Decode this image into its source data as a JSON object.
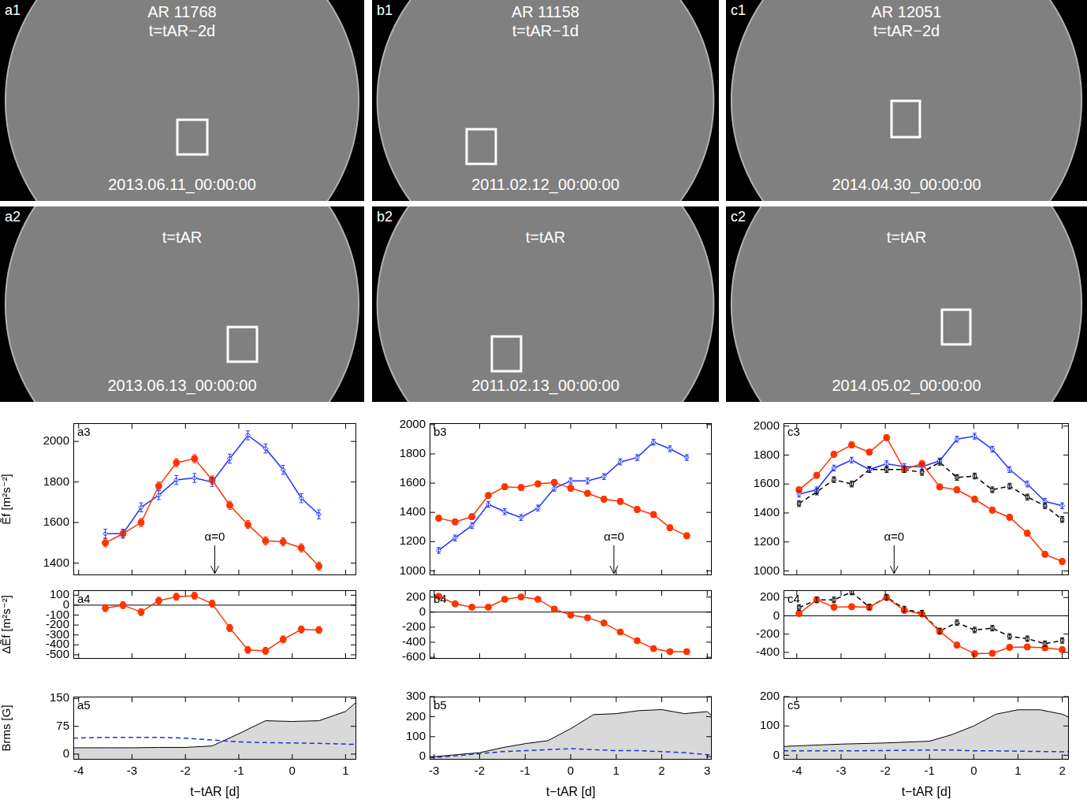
{
  "images": [
    {
      "title": "a1",
      "text": [
        "AR 11768",
        "t=tAR−2d"
      ],
      "date": "2013.06.11_00:00:00"
    },
    {
      "title": "a2",
      "text": [
        "t=tAR"
      ],
      "date": "2013.06.13_00:00:00"
    },
    {
      "title": "b1",
      "text": [
        "AR 11158",
        "t=tAR−1d"
      ],
      "date": "2011.02.12_00:00:00"
    },
    {
      "title": "b2",
      "text": [
        "t=tAR"
      ],
      "date": "2011.02.13_00:00:00"
    },
    {
      "title": "c1",
      "text": [
        "AR 12051",
        "t=tAR−2d"
      ],
      "date": "2014.04.30_00:00:00"
    },
    {
      "title": "c2",
      "text": [
        "t=tAR"
      ],
      "date": "2014.05.02_00:00:00"
    }
  ],
  "chart_data": [
    {
      "type": "line",
      "title": "a3",
      "ylabel": "Ẽf [m²s⁻²]",
      "grid": false,
      "tick_labels": "y",
      "xlim": [
        -4.1,
        1.2
      ],
      "xticks": [
        -4,
        -3,
        -2,
        -1,
        0,
        1
      ],
      "ylim": [
        1340,
        2090
      ],
      "yticks": [
        1400,
        1600,
        1800,
        2000
      ],
      "annotations": [
        {
          "x": -1.45,
          "text": "α=0"
        }
      ],
      "series": [
        {
          "color": "#ff3300",
          "marker": "circle",
          "line_style": "solid",
          "x": [
            -3.5,
            -3.17,
            -2.83,
            -2.5,
            -2.17,
            -1.83,
            -1.5,
            -1.17,
            -0.83,
            -0.5,
            -0.17,
            0.17,
            0.5
          ],
          "values": [
            1500,
            1545,
            1600,
            1780,
            1895,
            1915,
            1810,
            1685,
            1590,
            1510,
            1505,
            1475,
            1385
          ],
          "errors": [
            20,
            20,
            20,
            20,
            20,
            20,
            20,
            20,
            20,
            20,
            20,
            20,
            20
          ]
        },
        {
          "color": "#2233ff",
          "marker": "diamond",
          "line_style": "solid",
          "x": [
            -3.5,
            -3.17,
            -2.83,
            -2.5,
            -2.17,
            -1.83,
            -1.5,
            -1.17,
            -0.83,
            -0.5,
            -0.17,
            0.17,
            0.5
          ],
          "values": [
            1545,
            1545,
            1675,
            1735,
            1810,
            1820,
            1800,
            1915,
            2030,
            1965,
            1860,
            1720,
            1640
          ],
          "errors": [
            22,
            22,
            22,
            22,
            22,
            22,
            22,
            22,
            22,
            22,
            22,
            22,
            22
          ]
        }
      ]
    },
    {
      "type": "line",
      "title": "a4",
      "ylabel": "ΔẼf [m²s⁻²]",
      "grid": false,
      "tick_labels": "y",
      "xlim": [
        -4.1,
        1.2
      ],
      "xticks": [
        -4,
        -3,
        -2,
        -1,
        0,
        1
      ],
      "ylim": [
        -540,
        150
      ],
      "yticks": [
        -500,
        -400,
        -300,
        -200,
        -100,
        0,
        100
      ],
      "annotations": [
        {
          "y": 0
        }
      ],
      "series": [
        {
          "color": "#ff3300",
          "marker": "circle",
          "line_style": "solid",
          "x": [
            -3.5,
            -3.17,
            -2.83,
            -2.5,
            -2.17,
            -1.83,
            -1.5,
            -1.17,
            -0.83,
            -0.5,
            -0.17,
            0.17,
            0.5
          ],
          "values": [
            -30,
            0,
            -70,
            45,
            85,
            95,
            15,
            -230,
            -450,
            -460,
            -345,
            -245,
            -250
          ],
          "errors": [
            35,
            35,
            35,
            35,
            35,
            35,
            35,
            35,
            35,
            35,
            35,
            35,
            35
          ]
        }
      ]
    },
    {
      "type": "line",
      "title": "a5",
      "ylabel": "Brms [G]",
      "xlabel": "t−tAR [d]",
      "grid": false,
      "xlim": [
        -4.1,
        1.2
      ],
      "xticks": [
        -4,
        -3,
        -2,
        -1,
        0,
        1
      ],
      "ylim": [
        -15,
        155
      ],
      "yticks": [
        0,
        75,
        150
      ],
      "series": [
        {
          "type": "area",
          "color": "#d9d9d9",
          "line_style": "solid",
          "x": [
            -4.1,
            -3.5,
            -3,
            -2.5,
            -2,
            -1.5,
            -1,
            -0.5,
            0,
            0.5,
            1,
            1.2
          ],
          "values": [
            17,
            17,
            17,
            18,
            18,
            22,
            55,
            90,
            88,
            90,
            115,
            140
          ]
        },
        {
          "color": "#2233cc",
          "line_style": "dashed",
          "x": [
            -4.1,
            -3.5,
            -3,
            -2.5,
            -2,
            -1.5,
            -1,
            -0.5,
            0,
            0.5,
            1,
            1.2
          ],
          "values": [
            43,
            45,
            45,
            45,
            43,
            38,
            33,
            31,
            30,
            29,
            27,
            26
          ]
        }
      ]
    },
    {
      "type": "line",
      "title": "b3",
      "grid": false,
      "tick_labels": "y",
      "xlim": [
        -3.1,
        3.1
      ],
      "xticks": [
        -3,
        -2,
        -1,
        0,
        1,
        2,
        3
      ],
      "ylim": [
        970,
        2010
      ],
      "yticks": [
        1000,
        1200,
        1400,
        1600,
        1800,
        2000
      ],
      "annotations": [
        {
          "x": 0.95,
          "text": "α=0"
        }
      ],
      "series": [
        {
          "color": "#ff3300",
          "marker": "circle",
          "line_style": "solid",
          "x": [
            -2.9,
            -2.54,
            -2.17,
            -1.81,
            -1.45,
            -1.09,
            -0.72,
            -0.36,
            0,
            0.37,
            0.73,
            1.09,
            1.46,
            1.82,
            2.18,
            2.55
          ],
          "values": [
            1360,
            1335,
            1370,
            1515,
            1575,
            1570,
            1595,
            1605,
            1565,
            1530,
            1490,
            1475,
            1420,
            1385,
            1295,
            1240
          ],
          "errors": [
            20,
            20,
            20,
            20,
            20,
            20,
            20,
            20,
            20,
            20,
            20,
            20,
            20,
            20,
            20,
            20
          ]
        },
        {
          "color": "#2233ff",
          "marker": "diamond",
          "line_style": "solid",
          "x": [
            -2.9,
            -2.54,
            -2.17,
            -1.81,
            -1.45,
            -1.09,
            -0.72,
            -0.36,
            0,
            0.37,
            0.73,
            1.09,
            1.46,
            1.82,
            2.18,
            2.55
          ],
          "values": [
            1140,
            1225,
            1310,
            1455,
            1405,
            1365,
            1430,
            1565,
            1615,
            1615,
            1645,
            1745,
            1775,
            1880,
            1835,
            1775
          ],
          "errors": [
            20,
            20,
            20,
            20,
            20,
            20,
            20,
            20,
            20,
            20,
            20,
            20,
            20,
            20,
            20,
            20
          ]
        }
      ]
    },
    {
      "type": "line",
      "title": "b4",
      "grid": false,
      "tick_labels": "y",
      "xlim": [
        -3.1,
        3.1
      ],
      "xticks": [
        -3,
        -2,
        -1,
        0,
        1,
        2,
        3
      ],
      "ylim": [
        -620,
        290
      ],
      "yticks": [
        -600,
        -400,
        -200,
        0,
        200
      ],
      "annotations": [
        {
          "y": 0
        }
      ],
      "series": [
        {
          "color": "#ff3300",
          "marker": "circle",
          "line_style": "solid",
          "x": [
            -2.9,
            -2.54,
            -2.17,
            -1.81,
            -1.45,
            -1.09,
            -0.72,
            -0.36,
            0,
            0.37,
            0.73,
            1.09,
            1.46,
            1.82,
            2.18,
            2.55
          ],
          "values": [
            210,
            110,
            65,
            65,
            170,
            200,
            170,
            40,
            -40,
            -75,
            -145,
            -265,
            -380,
            -485,
            -525,
            -525
          ],
          "errors": [
            25,
            25,
            25,
            25,
            25,
            25,
            25,
            25,
            25,
            25,
            25,
            25,
            25,
            25,
            25,
            25
          ]
        }
      ]
    },
    {
      "type": "line",
      "title": "b5",
      "xlabel": "t−tAR [d]",
      "grid": false,
      "xlim": [
        -3.1,
        3.1
      ],
      "xticks": [
        -3,
        -2,
        -1,
        0,
        1,
        2,
        3
      ],
      "ylim": [
        -15,
        300
      ],
      "yticks": [
        0,
        100,
        200,
        300
      ],
      "series": [
        {
          "type": "area",
          "color": "#d9d9d9",
          "line_style": "solid",
          "x": [
            -3.1,
            -3,
            -2.5,
            -2,
            -1.5,
            -1,
            -0.5,
            0,
            0.5,
            1,
            1.5,
            2,
            2.5,
            3,
            3.1
          ],
          "values": [
            -5,
            0,
            10,
            20,
            45,
            65,
            80,
            140,
            210,
            215,
            230,
            235,
            215,
            225,
            205
          ]
        },
        {
          "color": "#2233cc",
          "line_style": "dashed",
          "x": [
            -3.1,
            -3,
            -2.5,
            -2,
            -1.5,
            -1,
            -0.5,
            0,
            0.5,
            1,
            1.5,
            2,
            2.5,
            3,
            3.1
          ],
          "values": [
            -5,
            -5,
            5,
            15,
            25,
            30,
            35,
            40,
            35,
            30,
            30,
            25,
            20,
            10,
            8
          ]
        }
      ]
    },
    {
      "type": "line",
      "title": "c3",
      "grid": false,
      "tick_labels": "y",
      "xlim": [
        -4.3,
        2.15
      ],
      "xticks": [
        -4,
        -3,
        -2,
        -1,
        0,
        1,
        2
      ],
      "ylim": [
        970,
        2020
      ],
      "yticks": [
        1000,
        1200,
        1400,
        1600,
        1800,
        2000
      ],
      "annotations": [
        {
          "x": -1.8,
          "text": "α=0"
        }
      ],
      "series": [
        {
          "color": "#ff3300",
          "marker": "circle",
          "line_style": "solid",
          "x": [
            -3.95,
            -3.55,
            -3.16,
            -2.76,
            -2.36,
            -1.97,
            -1.57,
            -1.17,
            -0.77,
            -0.38,
            0.02,
            0.42,
            0.81,
            1.21,
            1.61,
            2.0
          ],
          "values": [
            1560,
            1660,
            1805,
            1870,
            1820,
            1920,
            1700,
            1740,
            1580,
            1560,
            1495,
            1420,
            1370,
            1260,
            1115,
            1065
          ],
          "errors": [
            20,
            20,
            20,
            20,
            20,
            20,
            20,
            20,
            20,
            20,
            20,
            20,
            20,
            20,
            20,
            20
          ]
        },
        {
          "color": "#2233ff",
          "marker": "diamond",
          "line_style": "solid",
          "x": [
            -3.95,
            -3.55,
            -3.16,
            -2.76,
            -2.36,
            -1.97,
            -1.57,
            -1.17,
            -0.77,
            -0.38,
            0.02,
            0.42,
            0.81,
            1.21,
            1.61,
            2.0
          ],
          "values": [
            1530,
            1560,
            1710,
            1765,
            1700,
            1740,
            1720,
            1720,
            1760,
            1910,
            1930,
            1840,
            1700,
            1600,
            1480,
            1450
          ],
          "errors": [
            20,
            20,
            20,
            20,
            20,
            20,
            20,
            20,
            20,
            20,
            20,
            20,
            20,
            20,
            20,
            20
          ]
        },
        {
          "color": "#000000",
          "marker": "square",
          "line_style": "dashed",
          "x": [
            -3.95,
            -3.55,
            -3.16,
            -2.76,
            -2.36,
            -1.97,
            -1.57,
            -1.17,
            -0.77,
            -0.38,
            0.02,
            0.42,
            0.81,
            1.21,
            1.61,
            2.0
          ],
          "values": [
            1465,
            1545,
            1630,
            1600,
            1700,
            1700,
            1700,
            1680,
            1750,
            1645,
            1655,
            1560,
            1585,
            1510,
            1450,
            1355
          ],
          "errors": [
            20,
            20,
            20,
            20,
            20,
            20,
            20,
            20,
            20,
            20,
            20,
            20,
            20,
            20,
            20,
            20
          ]
        }
      ]
    },
    {
      "type": "line",
      "title": "c4",
      "grid": false,
      "tick_labels": "y",
      "xlim": [
        -4.3,
        2.15
      ],
      "xticks": [
        -4,
        -3,
        -2,
        -1,
        0,
        1,
        2
      ],
      "ylim": [
        -470,
        280
      ],
      "yticks": [
        -400,
        -200,
        0,
        200
      ],
      "annotations": [
        {
          "y": 0
        }
      ],
      "series": [
        {
          "color": "#ff3300",
          "marker": "circle",
          "line_style": "solid",
          "x": [
            -3.95,
            -3.55,
            -3.16,
            -2.76,
            -2.36,
            -1.97,
            -1.57,
            -1.17,
            -0.77,
            -0.38,
            0.02,
            0.42,
            0.81,
            1.21,
            1.61,
            2.0
          ],
          "values": [
            25,
            175,
            95,
            100,
            95,
            200,
            60,
            20,
            -170,
            -320,
            -415,
            -410,
            -345,
            -340,
            -350,
            -370
          ],
          "errors": [
            30,
            30,
            30,
            30,
            30,
            30,
            30,
            30,
            30,
            30,
            30,
            30,
            30,
            30,
            30,
            30
          ]
        },
        {
          "color": "#000000",
          "marker": "square",
          "line_style": "dashed",
          "x": [
            -3.95,
            -3.55,
            -3.16,
            -2.76,
            -2.36,
            -1.97,
            -1.57,
            -1.17,
            -0.77,
            -0.38,
            0.02,
            0.42,
            0.81,
            1.21,
            1.61,
            2.0
          ],
          "values": [
            90,
            175,
            175,
            260,
            95,
            205,
            75,
            30,
            -165,
            -75,
            -155,
            -135,
            -225,
            -250,
            -305,
            -270
          ],
          "errors": [
            30,
            30,
            30,
            30,
            30,
            30,
            30,
            30,
            30,
            30,
            30,
            30,
            30,
            30,
            30,
            30
          ]
        }
      ]
    },
    {
      "type": "line",
      "title": "c5",
      "xlabel": "t−tAR [d]",
      "grid": false,
      "xlim": [
        -4.3,
        2.15
      ],
      "xticks": [
        -4,
        -3,
        -2,
        -1,
        0,
        1,
        2
      ],
      "ylim": [
        -15,
        200
      ],
      "yticks": [
        0,
        100,
        200
      ],
      "series": [
        {
          "type": "area",
          "color": "#d9d9d9",
          "line_style": "solid",
          "x": [
            -4.3,
            -4,
            -3,
            -2,
            -1,
            -0.5,
            0,
            0.5,
            1,
            1.5,
            2,
            2.15
          ],
          "values": [
            30,
            32,
            38,
            42,
            48,
            70,
            100,
            140,
            155,
            155,
            140,
            130
          ]
        },
        {
          "color": "#2233cc",
          "line_style": "dashed",
          "x": [
            -4.3,
            -4,
            -3,
            -2,
            -1,
            -0.5,
            0,
            0.5,
            1,
            1.5,
            2,
            2.15
          ],
          "values": [
            15,
            15,
            15,
            16,
            18,
            18,
            15,
            15,
            14,
            13,
            12,
            12
          ]
        }
      ]
    }
  ]
}
